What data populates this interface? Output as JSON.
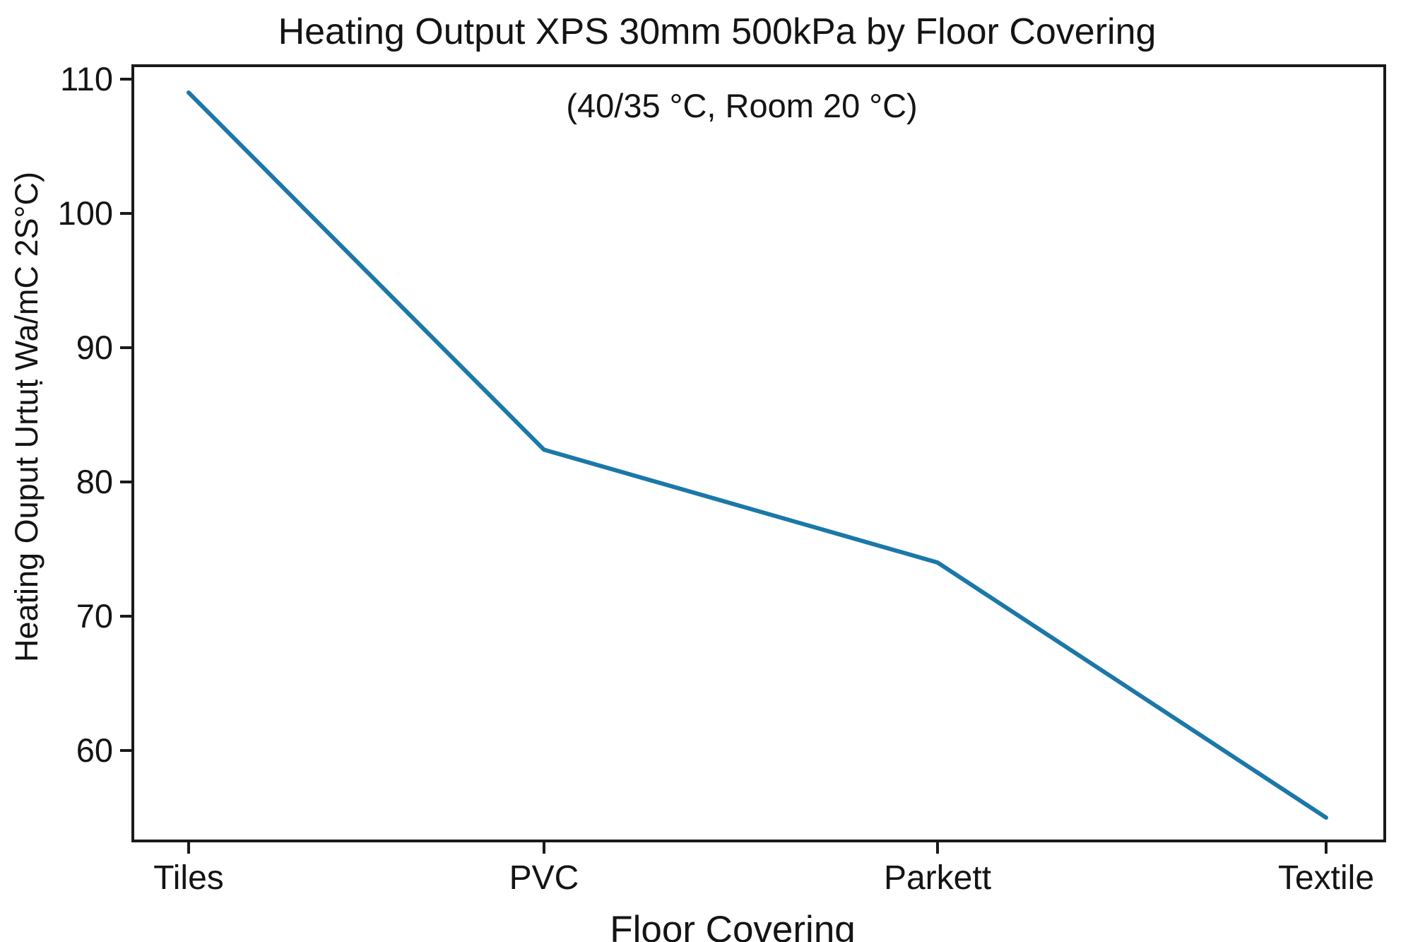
{
  "chart_data": {
    "type": "line",
    "title": "Heating Output XPS 30mm 500kPa by Floor Covering",
    "subtitle": "(40/35 °C, Room 20 °C)",
    "xlabel": "Floor Covering",
    "ylabel": "Heating Ouput Urtuṭ Wa/mC 2S°C)",
    "categories": [
      "Tiles",
      "PVC",
      "Parkett",
      "Textile"
    ],
    "series": [
      {
        "name": "Heating Output",
        "values": [
          109,
          82.4,
          74,
          55
        ]
      }
    ],
    "yticks": [
      110,
      100,
      90,
      80,
      70,
      60
    ],
    "ylim": [
      53.4,
      111.0
    ],
    "grid": false,
    "legend": false,
    "marker": "none",
    "colors": {
      "line": "#1b78a8",
      "axis": "#1a1a1a",
      "text": "#141414",
      "background": "#ffffff"
    }
  }
}
